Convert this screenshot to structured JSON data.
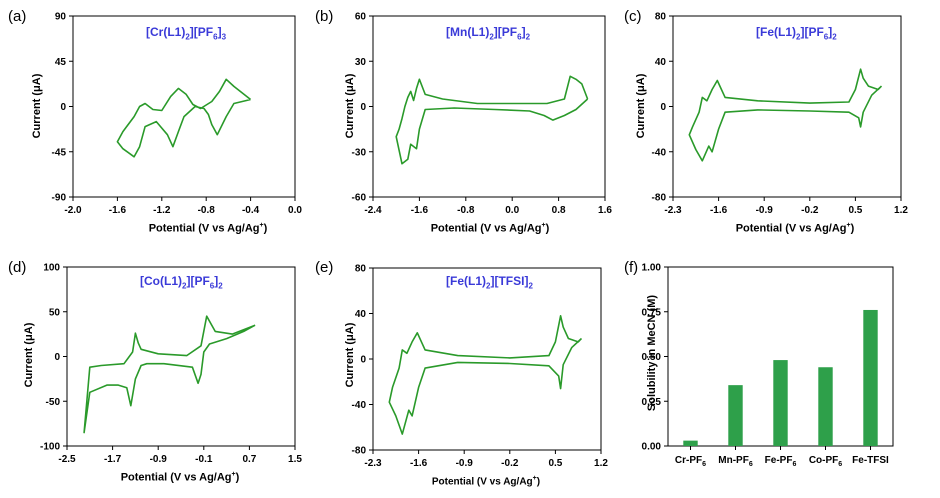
{
  "panels": [
    {
      "label": "(a)",
      "title_main": "[Cr(L1)",
      "title_sub1": "2",
      "title_mid": "][PF",
      "title_sub2": "6",
      "title_end": "]",
      "title_sub3": "3"
    },
    {
      "label": "(b)",
      "title_main": "[Mn(L1)",
      "title_sub1": "2",
      "title_mid": "][PF",
      "title_sub2": "6",
      "title_end": "]",
      "title_sub3": "2"
    },
    {
      "label": "(c)",
      "title_main": "[Fe(L1)",
      "title_sub1": "2",
      "title_mid": "][PF",
      "title_sub2": "6",
      "title_end": "]",
      "title_sub3": "2"
    },
    {
      "label": "(d)",
      "title_main": "[Co(L1)",
      "title_sub1": "2",
      "title_mid": "][PF",
      "title_sub2": "6",
      "title_end": "]",
      "title_sub3": "2"
    },
    {
      "label": "(e)",
      "title_main": "[Fe(L1)",
      "title_sub1": "2",
      "title_mid": "][TFSI]",
      "title_sub2": "2",
      "title_end": "",
      "title_sub3": ""
    },
    {
      "label": "(f)"
    }
  ],
  "axis_labels": {
    "cv_y": "Current (μA)",
    "cv_x_main": "Potential (V vs Ag/Ag",
    "cv_x_sup": "+",
    "cv_x_end": ")",
    "bar_y": "Solubility in MeCN (M)"
  },
  "colors": {
    "line": "#2a9a2a",
    "bar": "#2ea04a",
    "title": "#3a3ad8"
  },
  "chart_data": [
    {
      "type": "line",
      "title": "[Cr(L1)2][PF6]3",
      "xlabel": "Potential (V vs Ag/Ag+)",
      "ylabel": "Current (μA)",
      "xlim": [
        -2.0,
        0.0
      ],
      "ylim": [
        -90,
        90
      ],
      "xticks": [
        "-2.0",
        "-1.6",
        "-1.2",
        "-0.8",
        "-0.4",
        "0.0"
      ],
      "yticks": [
        "-90",
        "-45",
        "0",
        "45",
        "90"
      ],
      "x": [
        -0.4,
        -0.55,
        -0.62,
        -0.7,
        -0.75,
        -0.78,
        -0.82,
        -0.9,
        -1.0,
        -1.05,
        -1.1,
        -1.15,
        -1.25,
        -1.35,
        -1.4,
        -1.45,
        -1.55,
        -1.6,
        -1.55,
        -1.45,
        -1.4,
        -1.35,
        -1.28,
        -1.2,
        -1.12,
        -1.05,
        -0.98,
        -0.92,
        -0.85,
        -0.75,
        -0.68,
        -0.62,
        -0.55,
        -0.4
      ],
      "y": [
        7,
        3,
        -10,
        -28,
        -18,
        -8,
        -2,
        0,
        -10,
        -25,
        -40,
        -28,
        -15,
        -20,
        -40,
        -50,
        -42,
        -35,
        -25,
        -10,
        0,
        3,
        -3,
        -4,
        10,
        18,
        12,
        2,
        -2,
        5,
        15,
        27,
        20,
        7
      ]
    },
    {
      "type": "line",
      "title": "[Mn(L1)2][PF6]2",
      "xlabel": "Potential (V vs Ag/Ag+)",
      "ylabel": "Current (μA)",
      "xlim": [
        -2.4,
        1.6
      ],
      "ylim": [
        -60,
        60
      ],
      "xticks": [
        "-2.4",
        "-1.6",
        "-0.8",
        "0.0",
        "0.8",
        "1.6"
      ],
      "yticks": [
        "-60",
        "-30",
        "0",
        "30",
        "60"
      ],
      "x": [
        1.3,
        1.1,
        0.9,
        0.7,
        0.55,
        0.3,
        -0.3,
        -1.0,
        -1.5,
        -1.6,
        -1.65,
        -1.75,
        -1.8,
        -1.9,
        -2.0,
        -1.95,
        -1.9,
        -1.85,
        -1.8,
        -1.75,
        -1.7,
        -1.65,
        -1.6,
        -1.5,
        -1.2,
        -0.6,
        0.0,
        0.6,
        0.9,
        1.0,
        1.1,
        1.2,
        1.3
      ],
      "y": [
        5,
        -2,
        -6,
        -9,
        -6,
        -3,
        -2,
        -1,
        -2,
        -15,
        -28,
        -25,
        -35,
        -38,
        -20,
        -15,
        -8,
        0,
        6,
        10,
        4,
        12,
        18,
        8,
        5,
        2,
        2,
        2,
        5,
        20,
        18,
        15,
        5
      ]
    },
    {
      "type": "line",
      "title": "[Fe(L1)2][PF6]2",
      "xlabel": "Potential (V vs Ag/Ag+)",
      "ylabel": "Current (μA)",
      "xlim": [
        -2.3,
        1.2
      ],
      "ylim": [
        -80,
        80
      ],
      "xticks": [
        "-2.3",
        "-1.6",
        "-0.9",
        "-0.2",
        "0.5",
        "1.2"
      ],
      "yticks": [
        "-80",
        "-40",
        "0",
        "40",
        "80"
      ],
      "x": [
        0.9,
        0.75,
        0.62,
        0.58,
        0.55,
        0.4,
        -0.2,
        -1.0,
        -1.5,
        -1.6,
        -1.7,
        -1.75,
        -1.85,
        -1.95,
        -2.05,
        -2.0,
        -1.9,
        -1.85,
        -1.78,
        -1.7,
        -1.62,
        -1.5,
        -1.0,
        -0.2,
        0.4,
        0.5,
        0.58,
        0.62,
        0.7,
        0.85,
        0.9
      ],
      "y": [
        18,
        10,
        -5,
        -18,
        -10,
        -5,
        -4,
        -3,
        -5,
        -20,
        -40,
        -35,
        -48,
        -38,
        -25,
        -18,
        -5,
        8,
        5,
        15,
        23,
        8,
        5,
        3,
        4,
        15,
        33,
        25,
        18,
        15,
        18
      ]
    },
    {
      "type": "line",
      "title": "[Co(L1)2][PF6]2",
      "xlabel": "Potential (V vs Ag/Ag+)",
      "ylabel": "Current (μA)",
      "xlim": [
        -2.5,
        1.5
      ],
      "ylim": [
        -100,
        100
      ],
      "xticks": [
        "-2.5",
        "-1.7",
        "-0.9",
        "-0.1",
        "0.7",
        "1.5"
      ],
      "yticks": [
        "-100",
        "-50",
        "0",
        "50",
        "100"
      ],
      "x": [
        0.8,
        0.6,
        0.3,
        0.0,
        -0.1,
        -0.15,
        -0.2,
        -0.3,
        -0.8,
        -1.1,
        -1.2,
        -1.3,
        -1.38,
        -1.45,
        -1.6,
        -1.8,
        -2.1,
        -2.2,
        -2.1,
        -1.9,
        -1.5,
        -1.35,
        -1.3,
        -1.25,
        -1.2,
        -0.9,
        -0.4,
        -0.15,
        -0.05,
        0.1,
        0.4,
        0.8
      ],
      "y": [
        35,
        28,
        20,
        14,
        5,
        -20,
        -30,
        -12,
        -8,
        -8,
        -10,
        -25,
        -55,
        -35,
        -32,
        -32,
        -40,
        -85,
        -12,
        -10,
        -8,
        5,
        26,
        15,
        8,
        3,
        1,
        12,
        45,
        28,
        25,
        35
      ]
    },
    {
      "type": "line",
      "title": "[Fe(L1)2][TFSI]2",
      "xlabel": "Potential (V vs Ag/Ag+)",
      "ylabel": "Current (μA)",
      "xlim": [
        -2.3,
        1.2
      ],
      "ylim": [
        -80,
        80
      ],
      "xticks": [
        "-2.3",
        "-1.6",
        "-0.9",
        "-0.2",
        "0.5",
        "1.2"
      ],
      "yticks": [
        "-80",
        "-40",
        "0",
        "40",
        "80"
      ],
      "x": [
        0.9,
        0.75,
        0.62,
        0.58,
        0.55,
        0.4,
        -0.2,
        -1.0,
        -1.5,
        -1.6,
        -1.7,
        -1.75,
        -1.85,
        -1.95,
        -2.05,
        -2.0,
        -1.9,
        -1.85,
        -1.78,
        -1.7,
        -1.62,
        -1.5,
        -1.0,
        -0.2,
        0.4,
        0.5,
        0.58,
        0.62,
        0.7,
        0.85,
        0.9
      ],
      "y": [
        18,
        10,
        -5,
        -26,
        -15,
        -6,
        -4,
        -3,
        -8,
        -25,
        -50,
        -45,
        -66,
        -50,
        -38,
        -25,
        -8,
        8,
        5,
        15,
        23,
        8,
        3,
        1,
        3,
        15,
        38,
        28,
        18,
        15,
        18
      ]
    },
    {
      "type": "bar",
      "ylabel": "Solubility in MeCN (M)",
      "ylim": [
        0.0,
        1.0
      ],
      "yticks": [
        "0.00",
        "0.25",
        "0.50",
        "0.75",
        "1.00"
      ],
      "categories": [
        {
          "main": "Cr-PF",
          "sub": "6"
        },
        {
          "main": "Mn-PF",
          "sub": "6"
        },
        {
          "main": "Fe-PF",
          "sub": "6"
        },
        {
          "main": "Co-PF",
          "sub": "6"
        },
        {
          "main": "Fe-TFSI",
          "sub": ""
        }
      ],
      "values": [
        0.03,
        0.34,
        0.48,
        0.44,
        0.76
      ]
    }
  ]
}
